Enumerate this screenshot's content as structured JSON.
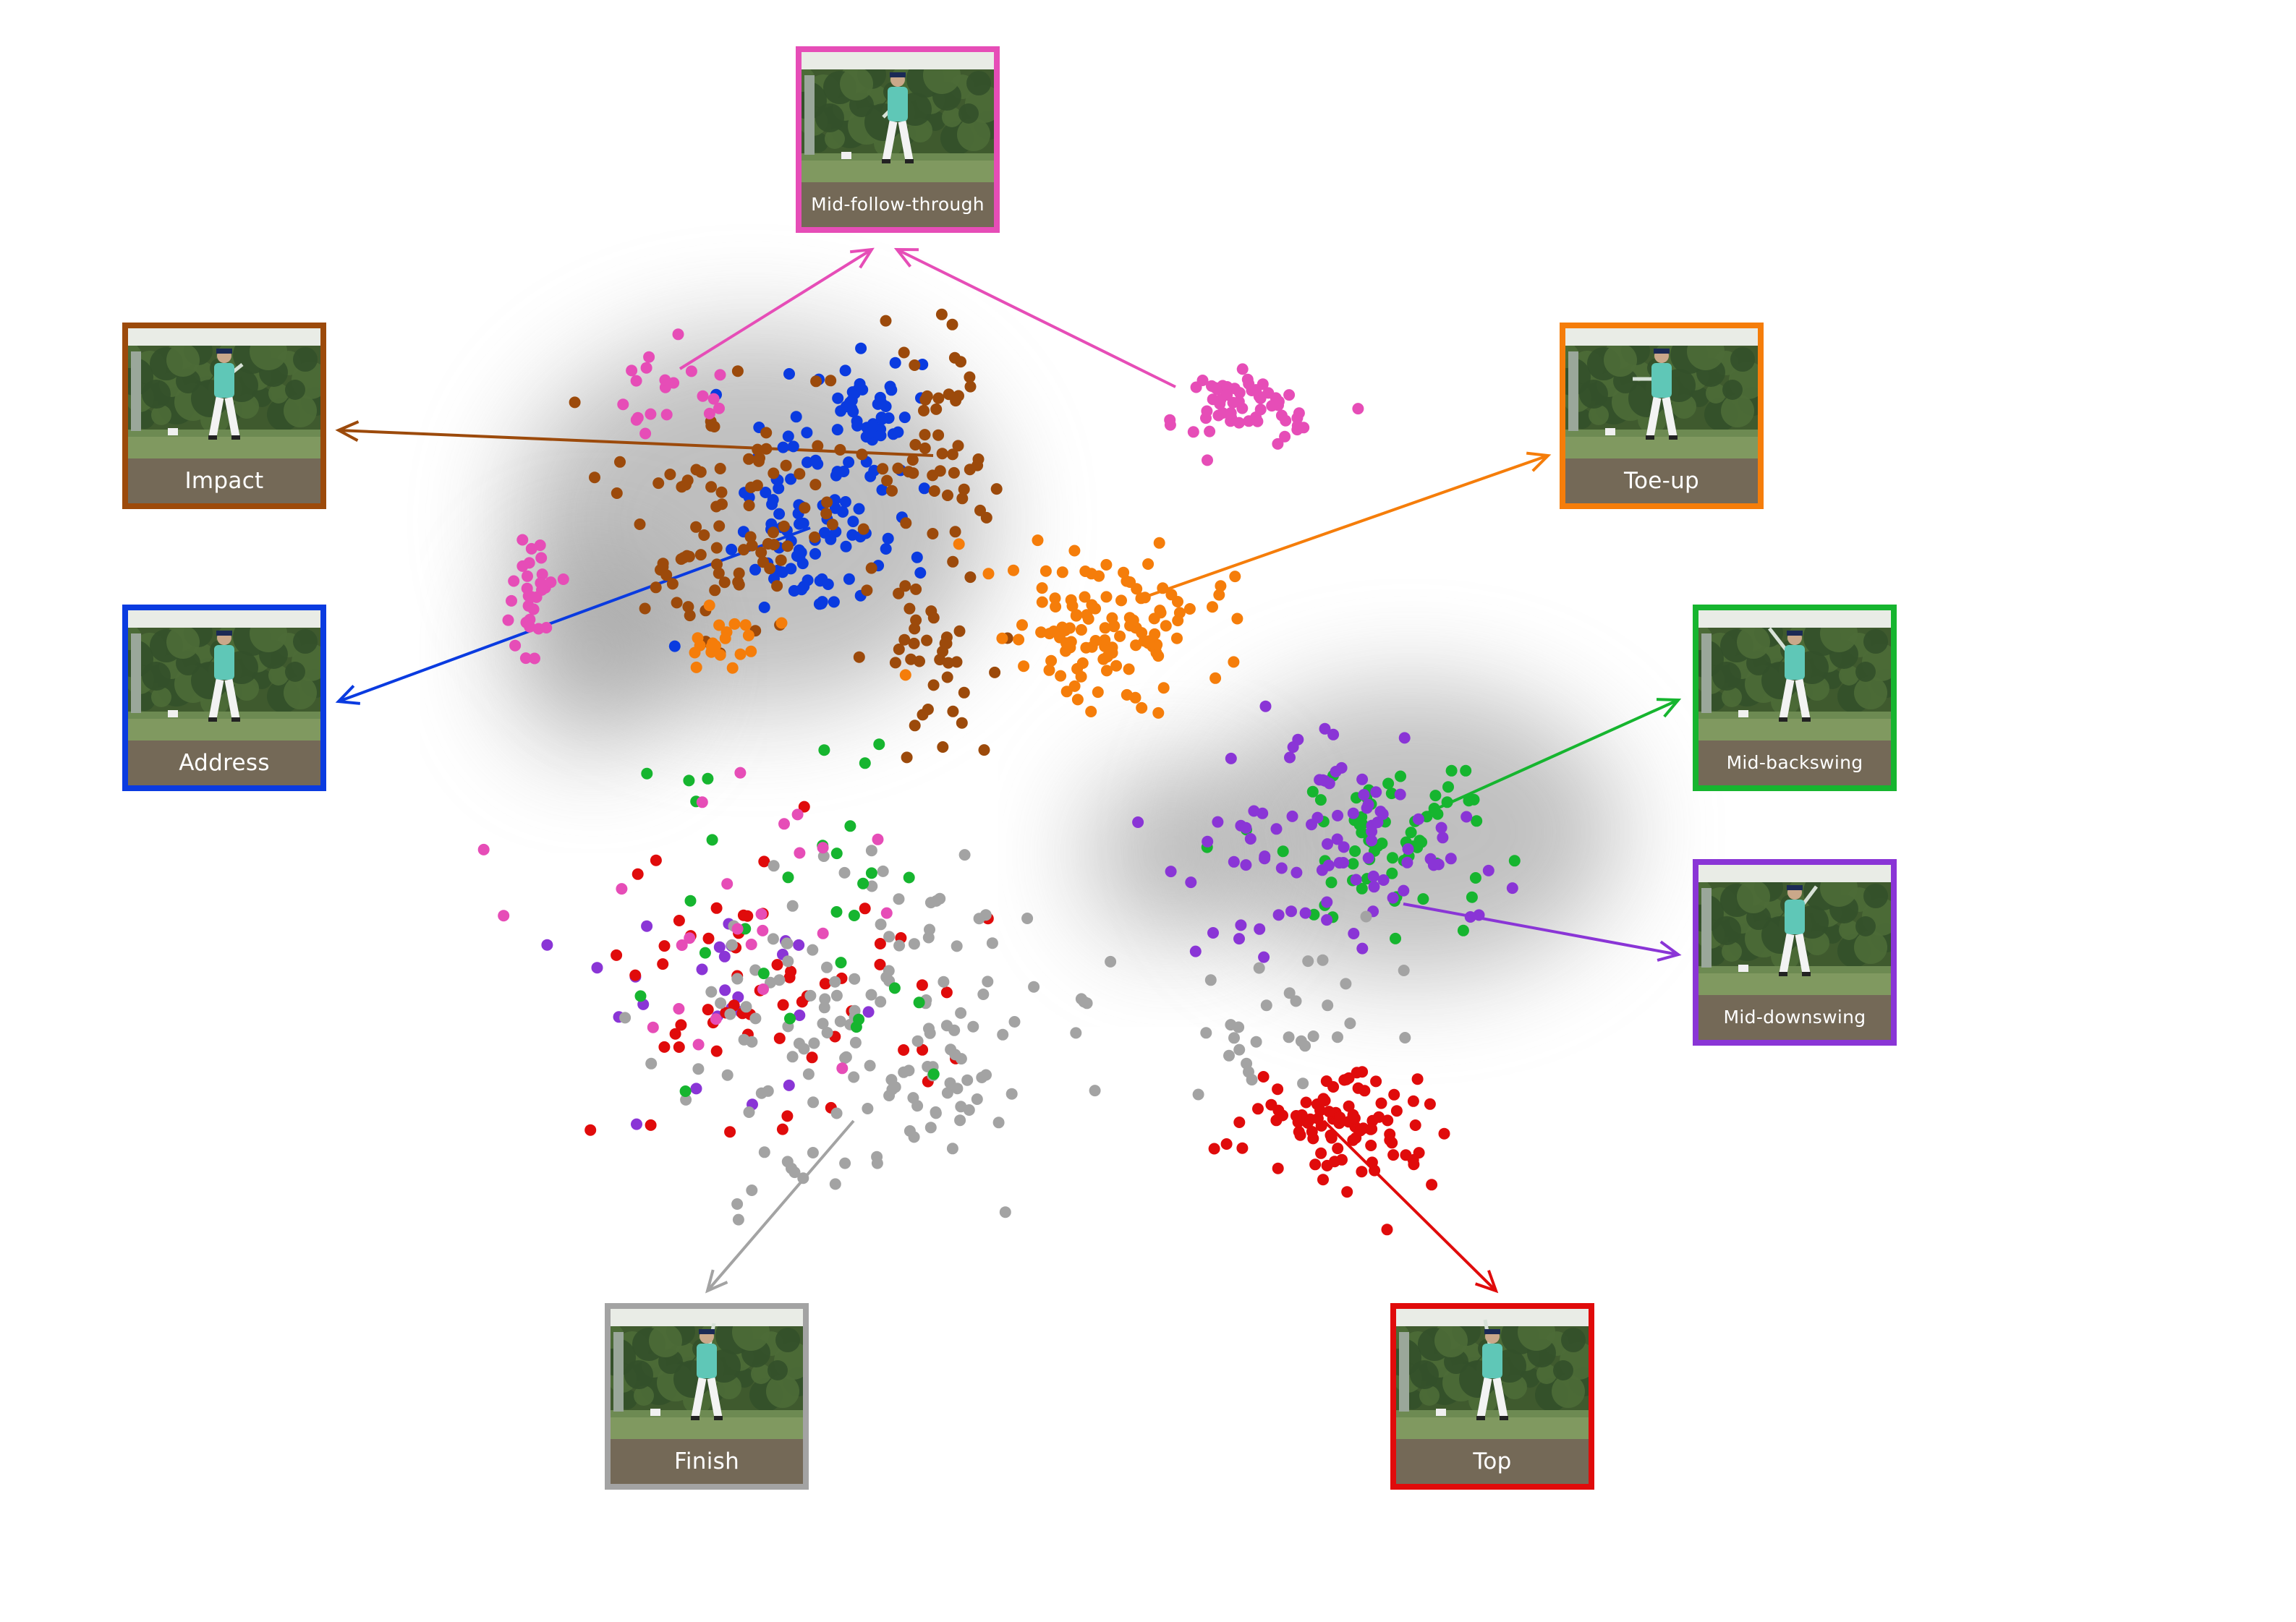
{
  "colors": {
    "mid_follow_through": "#e64db7",
    "impact": "#9c4a0b",
    "address": "#0a3be0",
    "toe_up": "#f57d0a",
    "mid_backswing": "#16b52f",
    "mid_downswing": "#8a35d6",
    "finish": "#a3a3a3",
    "top": "#e00b0b",
    "label_bg": "#746957",
    "halo": "#8c8c8c"
  },
  "panels": [
    {
      "key": "mid_follow_through",
      "label": "Mid-follow-through",
      "icon": "golfer-thumbnail-icon"
    },
    {
      "key": "impact",
      "label": "Impact",
      "icon": "golfer-thumbnail-icon"
    },
    {
      "key": "toe_up",
      "label": "Toe-up",
      "icon": "golfer-thumbnail-icon"
    },
    {
      "key": "address",
      "label": "Address",
      "icon": "golfer-thumbnail-icon"
    },
    {
      "key": "mid_backswing",
      "label": "Mid-backswing",
      "icon": "golfer-thumbnail-icon"
    },
    {
      "key": "mid_downswing",
      "label": "Mid-downswing",
      "icon": "golfer-thumbnail-icon"
    },
    {
      "key": "finish",
      "label": "Finish",
      "icon": "golfer-thumbnail-icon"
    },
    {
      "key": "top",
      "label": "Top",
      "icon": "golfer-thumbnail-icon"
    }
  ]
}
